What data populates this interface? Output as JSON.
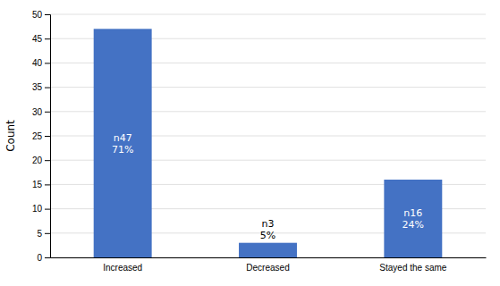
{
  "chart_data": {
    "type": "bar",
    "categories": [
      "Increased",
      "Decreased",
      "Stayed the same"
    ],
    "values": [
      47,
      3,
      16
    ],
    "value_labels": [
      "n47\n71%",
      "n3\n5%",
      "n16\n24%"
    ],
    "data_labels": true,
    "color": "#4472C4",
    "ylabel": "Count",
    "ylim": [
      0,
      50
    ],
    "yticks": [
      0,
      5,
      10,
      15,
      20,
      25,
      30,
      35,
      40,
      45,
      50
    ],
    "grid": true
  }
}
